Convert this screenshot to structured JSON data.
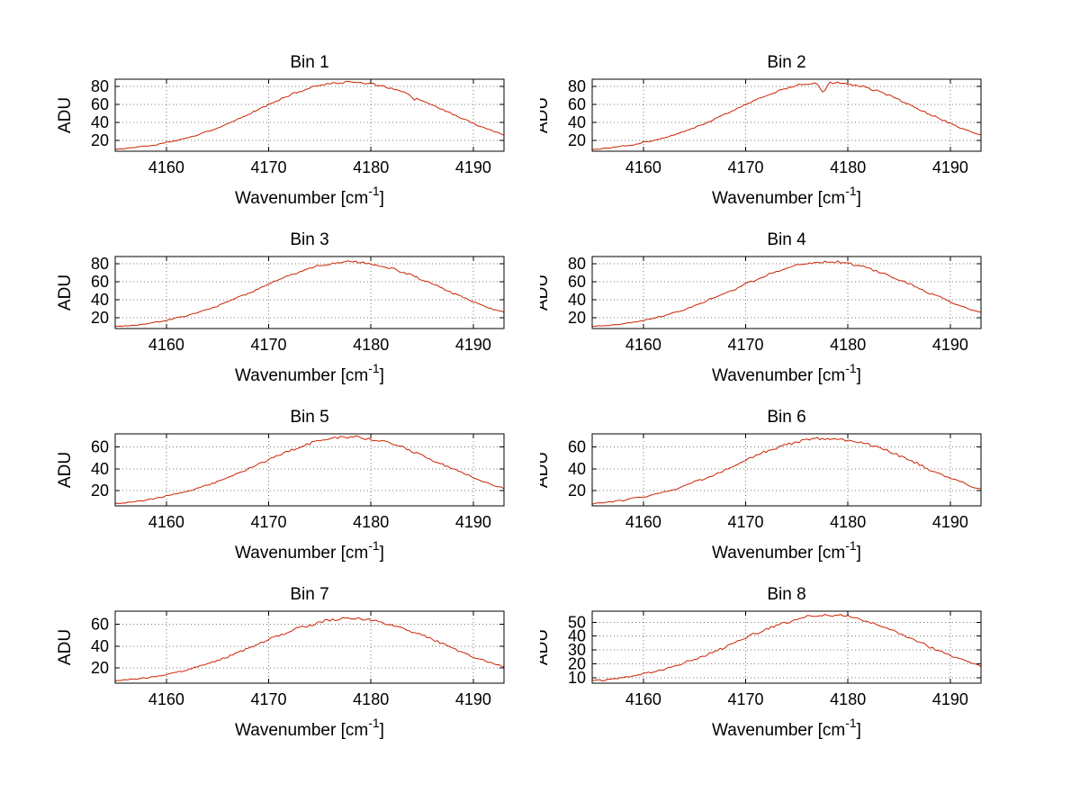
{
  "figure": {
    "background": "#ffffff",
    "line_color": "#cc2200",
    "grid_color": "#333333",
    "axis_color": "#000000",
    "ylabel": "ADU",
    "xlabel": {
      "pre": "Wavenumber [cm",
      "sup": "-1",
      "post": "]"
    }
  },
  "chart_data": [
    {
      "type": "line",
      "title": "Bin 1",
      "xlabel": "Wavenumber [cm^-1]",
      "ylabel": "ADU",
      "x_start": 4155,
      "x_step": 1,
      "values": [
        10,
        11,
        12,
        14,
        15,
        18,
        20,
        23,
        26,
        30,
        34,
        39,
        44,
        49,
        54,
        60,
        65,
        70,
        74,
        78,
        81,
        83,
        84,
        85,
        84,
        83,
        81,
        78,
        74,
        70,
        65,
        60,
        54,
        49,
        44,
        39,
        34,
        30,
        26
      ],
      "xlim": [
        4155,
        4193
      ],
      "ylim": [
        8,
        88
      ],
      "xticks": [
        4160,
        4170,
        4180,
        4190
      ],
      "yticks": [
        20,
        40,
        60,
        80
      ],
      "grid": true,
      "noise": 1.3,
      "dips": [
        {
          "x": 4184.2,
          "depth": 3.5,
          "width": 0.25
        }
      ]
    },
    {
      "type": "line",
      "title": "Bin 2",
      "xlabel": "Wavenumber [cm^-1]",
      "ylabel": "ADU",
      "x_start": 4155,
      "x_step": 1,
      "values": [
        10,
        11,
        12,
        14,
        15,
        18,
        20,
        23,
        26,
        30,
        34,
        39,
        44,
        49,
        54,
        60,
        65,
        70,
        74,
        78,
        81,
        83,
        84,
        85,
        84,
        83,
        81,
        78,
        74,
        70,
        65,
        60,
        54,
        49,
        44,
        39,
        34,
        30,
        26
      ],
      "xlim": [
        4155,
        4193
      ],
      "ylim": [
        8,
        88
      ],
      "xticks": [
        4160,
        4170,
        4180,
        4190
      ],
      "yticks": [
        20,
        40,
        60,
        80
      ],
      "grid": true,
      "noise": 1.3,
      "dips": [
        {
          "x": 4177.6,
          "depth": 11,
          "width": 0.3
        }
      ]
    },
    {
      "type": "line",
      "title": "Bin 3",
      "xlabel": "Wavenumber [cm^-1]",
      "ylabel": "ADU",
      "x_start": 4155,
      "x_step": 1,
      "values": [
        10,
        11,
        12,
        13,
        15,
        17,
        20,
        22,
        26,
        29,
        33,
        38,
        43,
        47,
        52,
        58,
        62,
        67,
        71,
        75,
        78,
        80,
        82,
        82,
        82,
        80,
        78,
        75,
        71,
        67,
        62,
        58,
        52,
        47,
        43,
        38,
        33,
        29,
        26
      ],
      "xlim": [
        4155,
        4193
      ],
      "ylim": [
        8,
        88
      ],
      "xticks": [
        4160,
        4170,
        4180,
        4190
      ],
      "yticks": [
        20,
        40,
        60,
        80
      ],
      "grid": true,
      "noise": 1.3,
      "dips": []
    },
    {
      "type": "line",
      "title": "Bin 4",
      "xlabel": "Wavenumber [cm^-1]",
      "ylabel": "ADU",
      "x_start": 4155,
      "x_step": 1,
      "values": [
        10,
        11,
        12,
        13,
        15,
        17,
        20,
        22,
        26,
        29,
        33,
        38,
        43,
        47,
        52,
        58,
        62,
        67,
        71,
        75,
        78,
        80,
        82,
        82,
        82,
        80,
        78,
        75,
        71,
        67,
        62,
        58,
        52,
        47,
        43,
        38,
        33,
        29,
        26
      ],
      "xlim": [
        4155,
        4193
      ],
      "ylim": [
        8,
        88
      ],
      "xticks": [
        4160,
        4170,
        4180,
        4190
      ],
      "yticks": [
        20,
        40,
        60,
        80
      ],
      "grid": true,
      "noise": 1.3,
      "dips": []
    },
    {
      "type": "line",
      "title": "Bin 5",
      "xlabel": "Wavenumber [cm^-1]",
      "ylabel": "ADU",
      "x_start": 4155,
      "x_step": 1,
      "values": [
        8,
        9,
        10,
        11,
        13,
        15,
        17,
        19,
        22,
        25,
        28,
        32,
        36,
        40,
        44,
        48,
        53,
        56,
        60,
        63,
        66,
        67,
        69,
        69,
        69,
        67,
        66,
        63,
        60,
        56,
        53,
        48,
        44,
        40,
        36,
        32,
        28,
        25,
        22
      ],
      "xlim": [
        4155,
        4193
      ],
      "ylim": [
        6,
        72
      ],
      "xticks": [
        4160,
        4170,
        4180,
        4190
      ],
      "yticks": [
        20,
        40,
        60
      ],
      "grid": true,
      "noise": 1.3,
      "dips": []
    },
    {
      "type": "line",
      "title": "Bin 6",
      "xlabel": "Wavenumber [cm^-1]",
      "ylabel": "ADU",
      "x_start": 4155,
      "x_step": 1,
      "values": [
        8,
        9,
        10,
        11,
        13,
        14,
        16,
        19,
        21,
        24,
        28,
        31,
        35,
        39,
        44,
        48,
        52,
        56,
        59,
        62,
        65,
        66,
        68,
        68,
        68,
        66,
        65,
        62,
        59,
        56,
        52,
        48,
        44,
        39,
        35,
        31,
        28,
        24,
        21
      ],
      "xlim": [
        4155,
        4193
      ],
      "ylim": [
        6,
        72
      ],
      "xticks": [
        4160,
        4170,
        4180,
        4190
      ],
      "yticks": [
        20,
        40,
        60
      ],
      "grid": true,
      "noise": 1.4,
      "dips": []
    },
    {
      "type": "line",
      "title": "Bin 7",
      "xlabel": "Wavenumber [cm^-1]",
      "ylabel": "ADU",
      "x_start": 4155,
      "x_step": 1,
      "values": [
        8,
        9,
        10,
        11,
        12,
        14,
        16,
        18,
        21,
        24,
        27,
        30,
        34,
        38,
        42,
        46,
        50,
        53,
        57,
        59,
        62,
        64,
        65,
        65,
        65,
        64,
        62,
        59,
        57,
        53,
        50,
        46,
        42,
        38,
        34,
        30,
        27,
        24,
        21
      ],
      "xlim": [
        4155,
        4193
      ],
      "ylim": [
        6,
        72
      ],
      "xticks": [
        4160,
        4170,
        4180,
        4190
      ],
      "yticks": [
        20,
        40,
        60
      ],
      "grid": true,
      "noise": 1.3,
      "dips": []
    },
    {
      "type": "line",
      "title": "Bin 8",
      "xlabel": "Wavenumber [cm^-1]",
      "ylabel": "ADU",
      "x_start": 4155,
      "x_step": 1,
      "values": [
        8,
        8,
        9,
        10,
        11,
        13,
        14,
        16,
        18,
        21,
        23,
        26,
        29,
        32,
        36,
        39,
        42,
        45,
        48,
        50,
        52,
        54,
        55,
        55,
        55,
        54,
        52,
        50,
        48,
        45,
        42,
        39,
        36,
        32,
        29,
        26,
        23,
        21,
        18
      ],
      "xlim": [
        4155,
        4193
      ],
      "ylim": [
        6,
        58
      ],
      "xticks": [
        4160,
        4170,
        4180,
        4190
      ],
      "yticks": [
        10,
        20,
        30,
        40,
        50
      ],
      "grid": true,
      "noise": 1.2,
      "dips": []
    }
  ]
}
